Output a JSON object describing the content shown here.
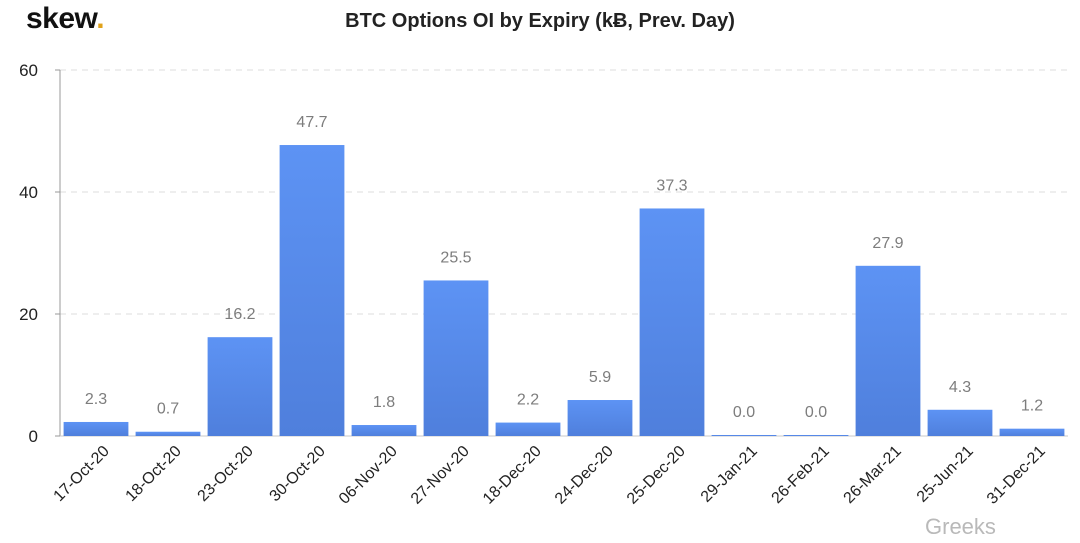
{
  "brand": {
    "logo_text": "skew",
    "logo_dot": "."
  },
  "watermark": "Greeks",
  "chart_data": {
    "type": "bar",
    "title": "BTC Options OI by Expiry (kɃ, Prev. Day)",
    "xlabel": "",
    "ylabel": "",
    "ylim": [
      0,
      60
    ],
    "yticks": [
      0,
      20,
      40,
      60
    ],
    "grid": true,
    "bar_color": "#5b8def",
    "categories": [
      "17-Oct-20",
      "18-Oct-20",
      "23-Oct-20",
      "30-Oct-20",
      "06-Nov-20",
      "27-Nov-20",
      "18-Dec-20",
      "24-Dec-20",
      "25-Dec-20",
      "29-Jan-21",
      "26-Feb-21",
      "26-Mar-21",
      "25-Jun-21",
      "31-Dec-21"
    ],
    "values": [
      2.3,
      0.7,
      16.2,
      47.7,
      1.8,
      25.5,
      2.2,
      5.9,
      37.3,
      0.0,
      0.0,
      27.9,
      4.3,
      1.2
    ],
    "data_labels": [
      "2.3",
      "0.7",
      "16.2",
      "47.7",
      "1.8",
      "25.5",
      "2.2",
      "5.9",
      "37.3",
      "0.0",
      "0.0",
      "27.9",
      "4.3",
      "1.2"
    ]
  }
}
